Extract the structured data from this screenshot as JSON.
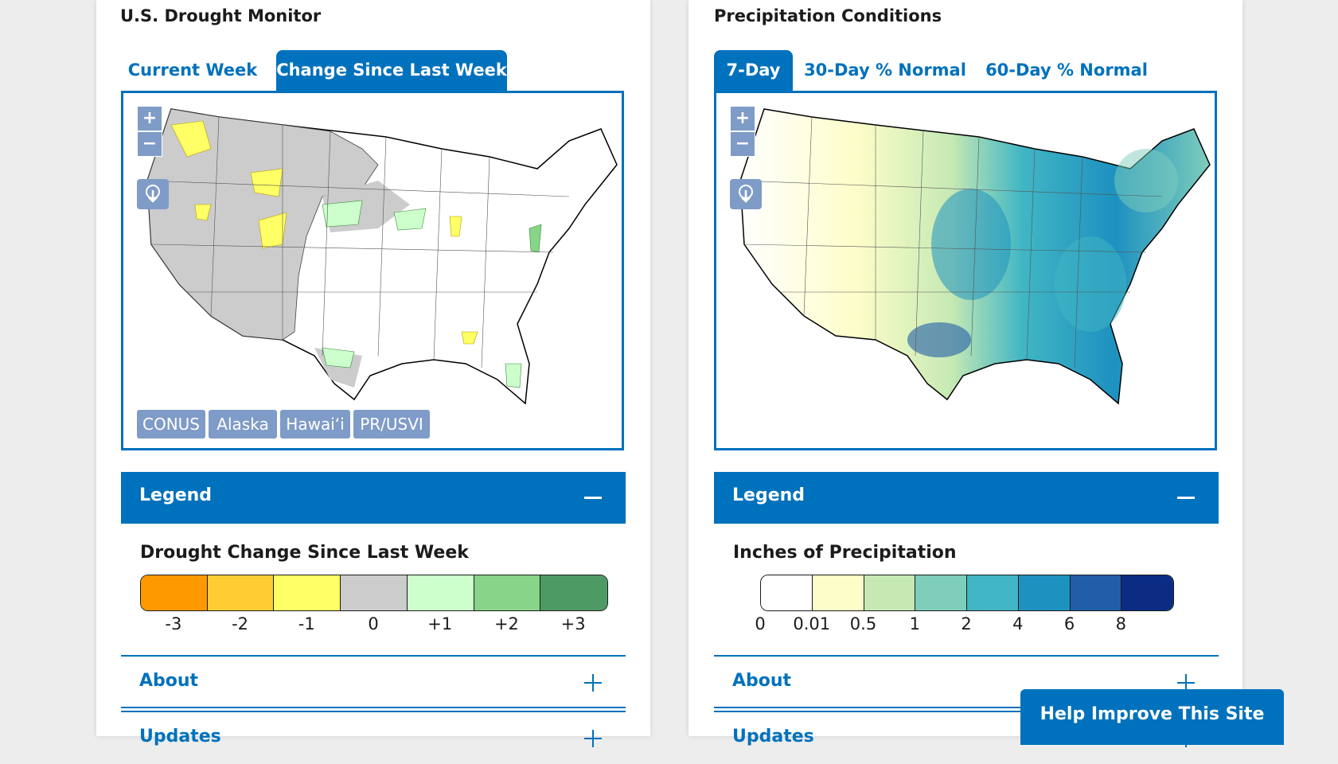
{
  "left_panel": {
    "title": "U.S. Drought Monitor",
    "tabs": [
      {
        "label": "Current Week",
        "active": false
      },
      {
        "label": "Change Since Last Week",
        "active": true
      }
    ],
    "map": {
      "zoom_in": "+",
      "zoom_out": "−",
      "download_icon": "download-icon",
      "regions": [
        "CONUS",
        "Alaska",
        "Hawaiʻi",
        "PR/USVI"
      ]
    },
    "legend_label": "Legend",
    "legend_title": "Drought Change Since Last Week",
    "legend_scale": {
      "labels": [
        "-3",
        "-2",
        "-1",
        "0",
        "+1",
        "+2",
        "+3"
      ],
      "colors": [
        "#ff9900",
        "#ffcc33",
        "#ffff66",
        "#cccccc",
        "#ccffcc",
        "#88d488",
        "#4e9a65"
      ]
    },
    "about_label": "About",
    "updates_label": "Updates"
  },
  "right_panel": {
    "title": "Precipitation Conditions",
    "tabs": [
      {
        "label": "7-Day",
        "active": true
      },
      {
        "label": "30-Day % Normal",
        "active": false
      },
      {
        "label": "60-Day % Normal",
        "active": false
      }
    ],
    "map": {
      "zoom_in": "+",
      "zoom_out": "−",
      "download_icon": "download-icon"
    },
    "legend_label": "Legend",
    "legend_title": "Inches of Precipitation",
    "legend_scale": {
      "labels": [
        "0",
        "0.01",
        "0.5",
        "1",
        "2",
        "4",
        "6",
        "8"
      ],
      "colors": [
        "#ffffff",
        "#fdfdc9",
        "#c6e9b4",
        "#7fcdbb",
        "#41b6c4",
        "#1d91c0",
        "#225ea8",
        "#0c2c84"
      ]
    },
    "about_label": "About",
    "updates_label": "Updates"
  },
  "help_button": "Help Improve This Site",
  "colors": {
    "accent": "#0071bc",
    "control": "#7f9bc7"
  }
}
